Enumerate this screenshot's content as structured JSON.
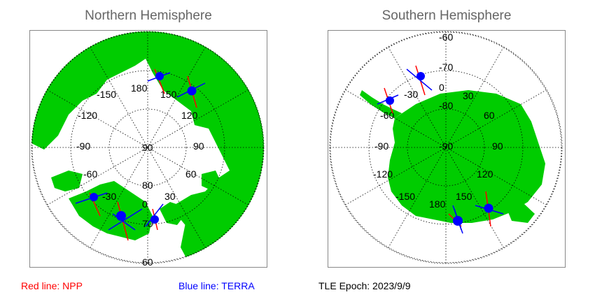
{
  "titles": {
    "north": "Northern Hemisphere",
    "south": "Southern Hemisphere"
  },
  "legend": {
    "npp": "Red line: NPP",
    "terra": "Blue line: TERRA",
    "epoch": "TLE Epoch: 2023/9/9"
  },
  "colors": {
    "land": "#00cc00",
    "npp": "#ff0000",
    "terra": "#0000ff",
    "grid": "#000000",
    "frame": "#888888"
  },
  "north_labels": {
    "lon": [
      "180",
      "150",
      "-150",
      "120",
      "-120",
      "90",
      "-90",
      "60",
      "-60",
      "30",
      "-30",
      "0"
    ],
    "lat": [
      "90",
      "80",
      "70",
      "60"
    ]
  },
  "south_labels": {
    "lon": [
      "-30",
      "0",
      "30",
      "60",
      "-60",
      "90",
      "-90",
      "120",
      "-120",
      "150",
      "-150",
      "180"
    ],
    "lat": [
      "-60",
      "-70",
      "-80",
      "-90"
    ]
  },
  "overpasses": {
    "north": [
      {
        "satellite": "TERRA"
      },
      {
        "satellite": "TERRA"
      },
      {
        "satellite": "TERRA"
      },
      {
        "satellite": "TERRA"
      },
      {
        "satellite": "TERRA"
      }
    ],
    "south": [
      {
        "satellite": "TERRA"
      },
      {
        "satellite": "TERRA"
      },
      {
        "satellite": "TERRA"
      },
      {
        "satellite": "TERRA"
      }
    ]
  }
}
